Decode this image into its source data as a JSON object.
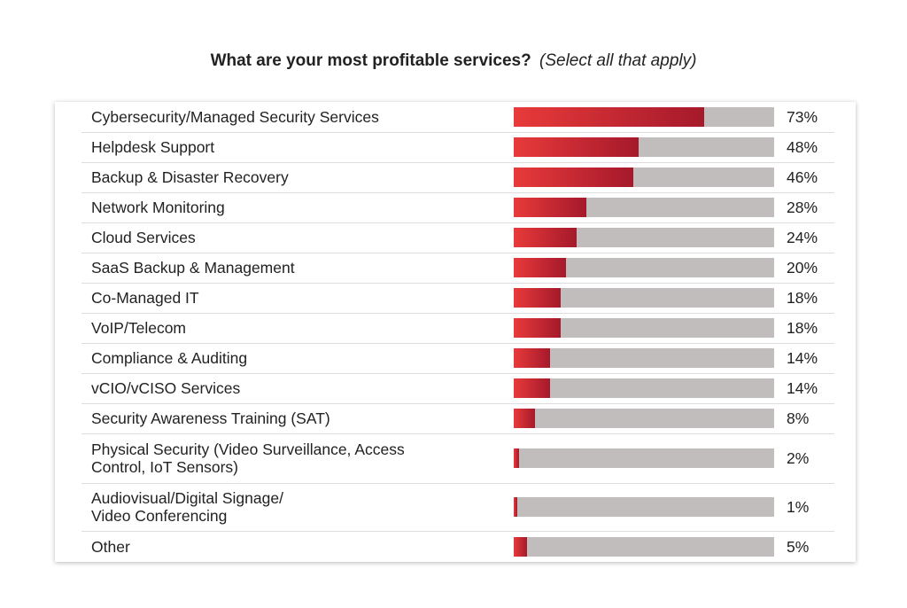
{
  "chart_data": {
    "type": "bar",
    "orientation": "horizontal",
    "title": "What are your most profitable services?",
    "subtitle": "(Select all that apply)",
    "xlim": [
      0,
      100
    ],
    "categories": [
      "Cybersecurity/Managed Security Services",
      "Helpdesk Support",
      "Backup & Disaster Recovery",
      "Network Monitoring",
      "Cloud Services",
      "SaaS Backup & Management",
      "Co-Managed IT",
      "VoIP/Telecom",
      "Compliance & Auditing",
      "vCIO/vCISO Services",
      "Security Awareness Training (SAT)",
      "Physical Security (Video Surveillance, Access Control, IoT Sensors)",
      "Audiovisual/Digital Signage/ Video Conferencing",
      "Other"
    ],
    "values": [
      73,
      48,
      46,
      28,
      24,
      20,
      18,
      18,
      14,
      14,
      8,
      2,
      1,
      5
    ],
    "value_labels": [
      "73%",
      "48%",
      "46%",
      "28%",
      "24%",
      "20%",
      "18%",
      "18%",
      "14%",
      "14%",
      "8%",
      "2%",
      "1%",
      "5%"
    ],
    "bar_colors": {
      "fill_start": "#e83a3a",
      "fill_end": "#a5192b",
      "track": "#c2bdbd"
    }
  }
}
